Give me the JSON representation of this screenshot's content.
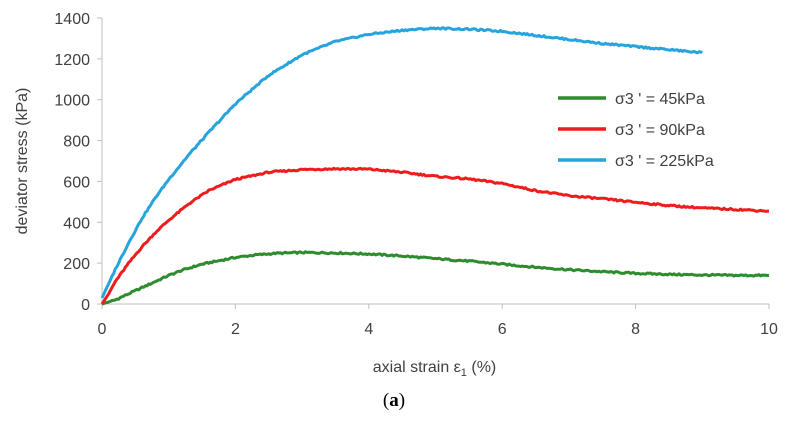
{
  "chart_data": {
    "type": "line",
    "title": "",
    "xlabel": "axial strain ε",
    "xlabel_subscript": "1",
    "xlabel_unit": " (%)",
    "ylabel": "deviator stress (kPa)",
    "xlim": [
      0,
      10
    ],
    "ylim": [
      0,
      1400
    ],
    "xticks": [
      0,
      2,
      4,
      6,
      8,
      10
    ],
    "yticks": [
      0,
      200,
      400,
      600,
      800,
      1000,
      1200,
      1400
    ],
    "grid": false,
    "legend_position": "right",
    "series": [
      {
        "name": "σ3 ' = 45kPa",
        "color": "#2e8b2e",
        "x": [
          0,
          0.1,
          0.2,
          0.3,
          0.5,
          0.8,
          1.0,
          1.2,
          1.5,
          1.8,
          2.0,
          2.3,
          2.6,
          3.0,
          3.3,
          3.6,
          4.0,
          4.5,
          5.0,
          5.5,
          6.0,
          6.5,
          7.0,
          7.5,
          8.0,
          8.5,
          9.0,
          9.5,
          10.0
        ],
        "y": [
          0,
          10,
          20,
          35,
          65,
          110,
          140,
          165,
          195,
          215,
          228,
          240,
          248,
          252,
          251,
          249,
          245,
          235,
          222,
          210,
          195,
          180,
          168,
          158,
          150,
          145,
          142,
          140,
          140
        ]
      },
      {
        "name": "σ3 ' = 90kPa",
        "color": "#ee1c1c",
        "x": [
          0,
          0.1,
          0.2,
          0.4,
          0.6,
          0.8,
          1.0,
          1.3,
          1.6,
          2.0,
          2.5,
          3.0,
          3.5,
          4.0,
          4.5,
          5.0,
          5.5,
          6.0,
          6.5,
          7.0,
          7.5,
          8.0,
          8.5,
          9.0,
          9.5,
          10.0
        ],
        "y": [
          0,
          50,
          110,
          200,
          280,
          350,
          410,
          490,
          555,
          610,
          645,
          658,
          662,
          660,
          645,
          625,
          612,
          590,
          555,
          530,
          515,
          498,
          482,
          470,
          463,
          455
        ]
      },
      {
        "name": "σ3 ' = 225kPa",
        "color": "#27a3dd",
        "x": [
          0,
          0.2,
          0.4,
          0.6,
          0.8,
          1.0,
          1.3,
          1.6,
          2.0,
          2.5,
          3.0,
          3.5,
          4.0,
          4.5,
          5.0,
          5.5,
          6.0,
          6.5,
          7.0,
          7.5,
          8.0,
          8.5,
          9.0
        ],
        "y": [
          30,
          170,
          300,
          420,
          520,
          610,
          730,
          840,
          980,
          1120,
          1220,
          1285,
          1320,
          1340,
          1350,
          1345,
          1335,
          1315,
          1295,
          1275,
          1260,
          1245,
          1230
        ]
      }
    ]
  },
  "caption": {
    "open": "(",
    "letter": "a",
    "close": ")"
  }
}
